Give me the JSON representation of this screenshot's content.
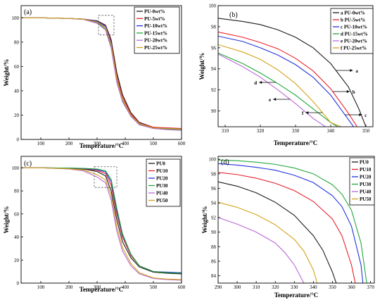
{
  "chart_data": [
    {
      "panel_label": "(a)",
      "type": "line",
      "xlabel": "Temperature/°C",
      "ylabel": "Weight/%",
      "xlim": [
        30,
        600
      ],
      "ylim": [
        0,
        110
      ],
      "xticks": [
        100,
        200,
        300,
        400,
        500,
        600
      ],
      "yticks": [
        0,
        20,
        40,
        60,
        80,
        100
      ],
      "legend": "top-right",
      "inset_box": {
        "x": [
          305,
          360
        ],
        "y": [
          86,
          102
        ]
      },
      "series": [
        {
          "name": "PU-0wt%",
          "color": "#1a1a1a",
          "x": [
            30,
            100,
            200,
            250,
            300,
            330,
            350,
            370,
            390,
            420,
            450,
            500,
            550,
            600
          ],
          "y": [
            100,
            100,
            99.5,
            99,
            97.5,
            94,
            82,
            55,
            37,
            22,
            14,
            10,
            9,
            8.5
          ]
        },
        {
          "name": "PU-5wt%",
          "color": "#e8202a",
          "x": [
            30,
            100,
            200,
            250,
            300,
            330,
            350,
            370,
            390,
            420,
            450,
            500,
            550,
            600
          ],
          "y": [
            100,
            100,
            99.5,
            99,
            97.2,
            93.5,
            80,
            52,
            35,
            21,
            13.5,
            10,
            9.5,
            9
          ]
        },
        {
          "name": "PU-10wt%",
          "color": "#2233dd",
          "x": [
            30,
            100,
            200,
            250,
            300,
            330,
            350,
            370,
            390,
            420,
            450,
            500,
            550,
            600
          ],
          "y": [
            100,
            100,
            99.5,
            99,
            97,
            93,
            79,
            50,
            33,
            20,
            13,
            9.5,
            9,
            8.5
          ]
        },
        {
          "name": "PU-15wt%",
          "color": "#22a83c",
          "x": [
            30,
            100,
            200,
            250,
            300,
            330,
            350,
            370,
            390,
            420,
            450,
            500,
            550,
            600
          ],
          "y": [
            100,
            100,
            99.4,
            98.8,
            96,
            91,
            76,
            48,
            32,
            19,
            12.5,
            9,
            8.5,
            8
          ]
        },
        {
          "name": "PU-20wt%",
          "color": "#b86ad6",
          "x": [
            30,
            100,
            200,
            250,
            300,
            330,
            350,
            370,
            390,
            420,
            450,
            500,
            550,
            600
          ],
          "y": [
            100,
            100,
            99.4,
            98.7,
            95.5,
            90,
            75,
            47,
            31,
            19,
            12,
            9,
            8,
            7.5
          ]
        },
        {
          "name": "PU-25wt%",
          "color": "#d4a21c",
          "x": [
            30,
            100,
            200,
            250,
            300,
            330,
            350,
            370,
            390,
            420,
            450,
            500,
            550,
            600
          ],
          "y": [
            100,
            100,
            99.5,
            98.9,
            96.5,
            92,
            78,
            50,
            33,
            20,
            13,
            9.5,
            9,
            8.5
          ]
        }
      ]
    },
    {
      "panel_label": "(b)",
      "type": "line",
      "xlabel": "Temperature/°C",
      "ylabel": "Weight/%",
      "xlim": [
        308,
        352
      ],
      "ylim": [
        88.5,
        100
      ],
      "xticks": [
        310,
        320,
        330,
        340,
        350
      ],
      "yticks": [
        90,
        92,
        94,
        96,
        98,
        100
      ],
      "legend": "top-right",
      "series": [
        {
          "name": "a  PU-0wt%",
          "color": "#1a1a1a",
          "x": [
            308,
            315,
            320,
            325,
            330,
            335,
            340,
            345,
            348,
            350
          ],
          "y": [
            98.8,
            98.5,
            98.2,
            97.7,
            97,
            96,
            94.5,
            92.3,
            90.2,
            88.5
          ]
        },
        {
          "name": "b  PU-5wt%",
          "color": "#e8202a",
          "x": [
            308,
            315,
            320,
            325,
            330,
            335,
            340,
            345,
            347.5
          ],
          "y": [
            97.5,
            97,
            96.5,
            95.9,
            95,
            93.8,
            92.1,
            89.8,
            88.5
          ]
        },
        {
          "name": "c  PU-10wt%",
          "color": "#2233dd",
          "x": [
            308,
            315,
            320,
            325,
            330,
            335,
            340,
            345,
            346.5
          ],
          "y": [
            97.1,
            96.6,
            96,
            95.3,
            94.4,
            93.2,
            91.5,
            89.2,
            88.5
          ]
        },
        {
          "name": "d  PU-15wt%",
          "color": "#22a83c",
          "x": [
            308,
            315,
            320,
            325,
            330,
            335,
            340,
            342
          ],
          "y": [
            95.5,
            94.5,
            93.6,
            92.6,
            91.5,
            90.2,
            88.9,
            88.5
          ]
        },
        {
          "name": "e  PU-20wt%",
          "color": "#b86ad6",
          "x": [
            308,
            315,
            320,
            325,
            330,
            335,
            338.5
          ],
          "y": [
            95.4,
            94.2,
            93.2,
            92,
            90.7,
            89.3,
            88.5
          ]
        },
        {
          "name": "f  PU-25wt%",
          "color": "#d4a21c",
          "x": [
            308,
            315,
            320,
            325,
            330,
            335,
            340,
            343
          ],
          "y": [
            96.3,
            95.6,
            94.9,
            93.9,
            92.6,
            90.9,
            88.9,
            88.5
          ]
        }
      ],
      "annotations": [
        {
          "text": "a",
          "pointer": "right",
          "series": 0
        },
        {
          "text": "b",
          "pointer": "right",
          "series": 1
        },
        {
          "text": "c",
          "pointer": "right",
          "series": 2
        },
        {
          "text": "d",
          "pointer": "left",
          "series": 3
        },
        {
          "text": "e",
          "pointer": "left",
          "series": 4
        },
        {
          "text": "f",
          "pointer": "left",
          "series": 5
        }
      ]
    },
    {
      "panel_label": "(c)",
      "type": "line",
      "xlabel": "Temperature/°C",
      "ylabel": "Weight/%",
      "xlim": [
        30,
        600
      ],
      "ylim": [
        0,
        110
      ],
      "xticks": [
        100,
        200,
        300,
        400,
        500,
        600
      ],
      "yticks": [
        0,
        20,
        40,
        60,
        80,
        100
      ],
      "legend": "top-right",
      "inset_box": {
        "x": [
          290,
          370
        ],
        "y": [
          83,
          101
        ]
      },
      "series": [
        {
          "name": "PU0",
          "color": "#1a1a1a",
          "x": [
            30,
            100,
            200,
            250,
            300,
            330,
            350,
            370,
            390,
            420,
            450,
            500,
            550,
            600
          ],
          "y": [
            100,
            100,
            99.5,
            99,
            96.8,
            93,
            80,
            55,
            36,
            22,
            14,
            9.5,
            8.5,
            8
          ]
        },
        {
          "name": "PU10",
          "color": "#e8202a",
          "x": [
            30,
            100,
            200,
            250,
            300,
            330,
            350,
            370,
            390,
            420,
            450,
            500,
            550,
            600
          ],
          "y": [
            100,
            100,
            99.7,
            99.3,
            97.8,
            95,
            85,
            60,
            40,
            24,
            15,
            10,
            9,
            8.5
          ]
        },
        {
          "name": "PU20",
          "color": "#2233dd",
          "x": [
            30,
            100,
            200,
            250,
            300,
            330,
            350,
            370,
            390,
            420,
            450,
            500,
            550,
            600
          ],
          "y": [
            100,
            100,
            99.8,
            99.5,
            98.5,
            96.5,
            88,
            63,
            42,
            25,
            15,
            10,
            9.5,
            9
          ]
        },
        {
          "name": "PU30",
          "color": "#22a83c",
          "x": [
            30,
            100,
            200,
            250,
            300,
            330,
            350,
            370,
            390,
            420,
            450,
            500,
            550,
            600
          ],
          "y": [
            100,
            100,
            99.8,
            99.6,
            99,
            97.5,
            90,
            65,
            43,
            25,
            15,
            10,
            9,
            8.5
          ]
        },
        {
          "name": "PU40",
          "color": "#b86ad6",
          "x": [
            30,
            100,
            200,
            250,
            300,
            330,
            350,
            370,
            390,
            420,
            450,
            500,
            550,
            600
          ],
          "y": [
            100,
            100,
            99,
            97.5,
            92,
            87,
            72,
            45,
            28,
            15,
            8,
            4,
            3,
            2.5
          ]
        },
        {
          "name": "PU50",
          "color": "#d4a21c",
          "x": [
            30,
            100,
            200,
            250,
            300,
            330,
            350,
            370,
            390,
            420,
            450,
            500,
            550,
            600
          ],
          "y": [
            100,
            100,
            99.2,
            98.2,
            94,
            89.5,
            76,
            49,
            31,
            17,
            9,
            4.5,
            3.5,
            3
          ]
        }
      ]
    },
    {
      "panel_label": "(d)",
      "type": "line",
      "xlabel": "Temperature/°C",
      "ylabel": "Weight/%",
      "xlim": [
        290,
        372
      ],
      "ylim": [
        83,
        100.4
      ],
      "xticks": [
        290,
        300,
        310,
        320,
        330,
        340,
        350,
        360,
        370
      ],
      "yticks": [
        84,
        86,
        88,
        90,
        92,
        94,
        96,
        98,
        100
      ],
      "legend": "top-right",
      "series": [
        {
          "name": "PU0",
          "color": "#1a1a1a",
          "x": [
            290,
            300,
            310,
            320,
            330,
            340,
            345,
            350,
            352
          ],
          "y": [
            96.9,
            96.3,
            95.4,
            94.1,
            92.3,
            89.5,
            87.5,
            84.5,
            83
          ]
        },
        {
          "name": "PU10",
          "color": "#e8202a",
          "x": [
            290,
            300,
            310,
            320,
            330,
            340,
            350,
            355,
            360,
            362
          ],
          "y": [
            98.2,
            97.9,
            97.4,
            96.7,
            95.7,
            94.2,
            91.8,
            89.5,
            85.5,
            83
          ]
        },
        {
          "name": "PU20",
          "color": "#2233dd",
          "x": [
            290,
            300,
            310,
            320,
            330,
            340,
            350,
            355,
            360,
            365,
            366
          ],
          "y": [
            99.4,
            99.2,
            98.9,
            98.5,
            97.8,
            96.8,
            95,
            93.5,
            90.8,
            85.5,
            83
          ]
        },
        {
          "name": "PU30",
          "color": "#22a83c",
          "x": [
            290,
            300,
            310,
            320,
            330,
            340,
            350,
            355,
            360,
            365,
            368
          ],
          "y": [
            99.9,
            99.8,
            99.6,
            99.3,
            98.8,
            98,
            96.5,
            95.2,
            93,
            88.5,
            83
          ]
        },
        {
          "name": "PU40",
          "color": "#b86ad6",
          "x": [
            290,
            300,
            310,
            320,
            325,
            330,
            335
          ],
          "y": [
            92,
            91.1,
            90,
            88.5,
            87.2,
            85.5,
            83
          ]
        },
        {
          "name": "PU50",
          "color": "#d4a21c",
          "x": [
            290,
            300,
            310,
            320,
            330,
            335,
            340,
            342
          ],
          "y": [
            94.1,
            93.4,
            92.4,
            91,
            89,
            87.4,
            84.8,
            83
          ]
        }
      ]
    }
  ]
}
